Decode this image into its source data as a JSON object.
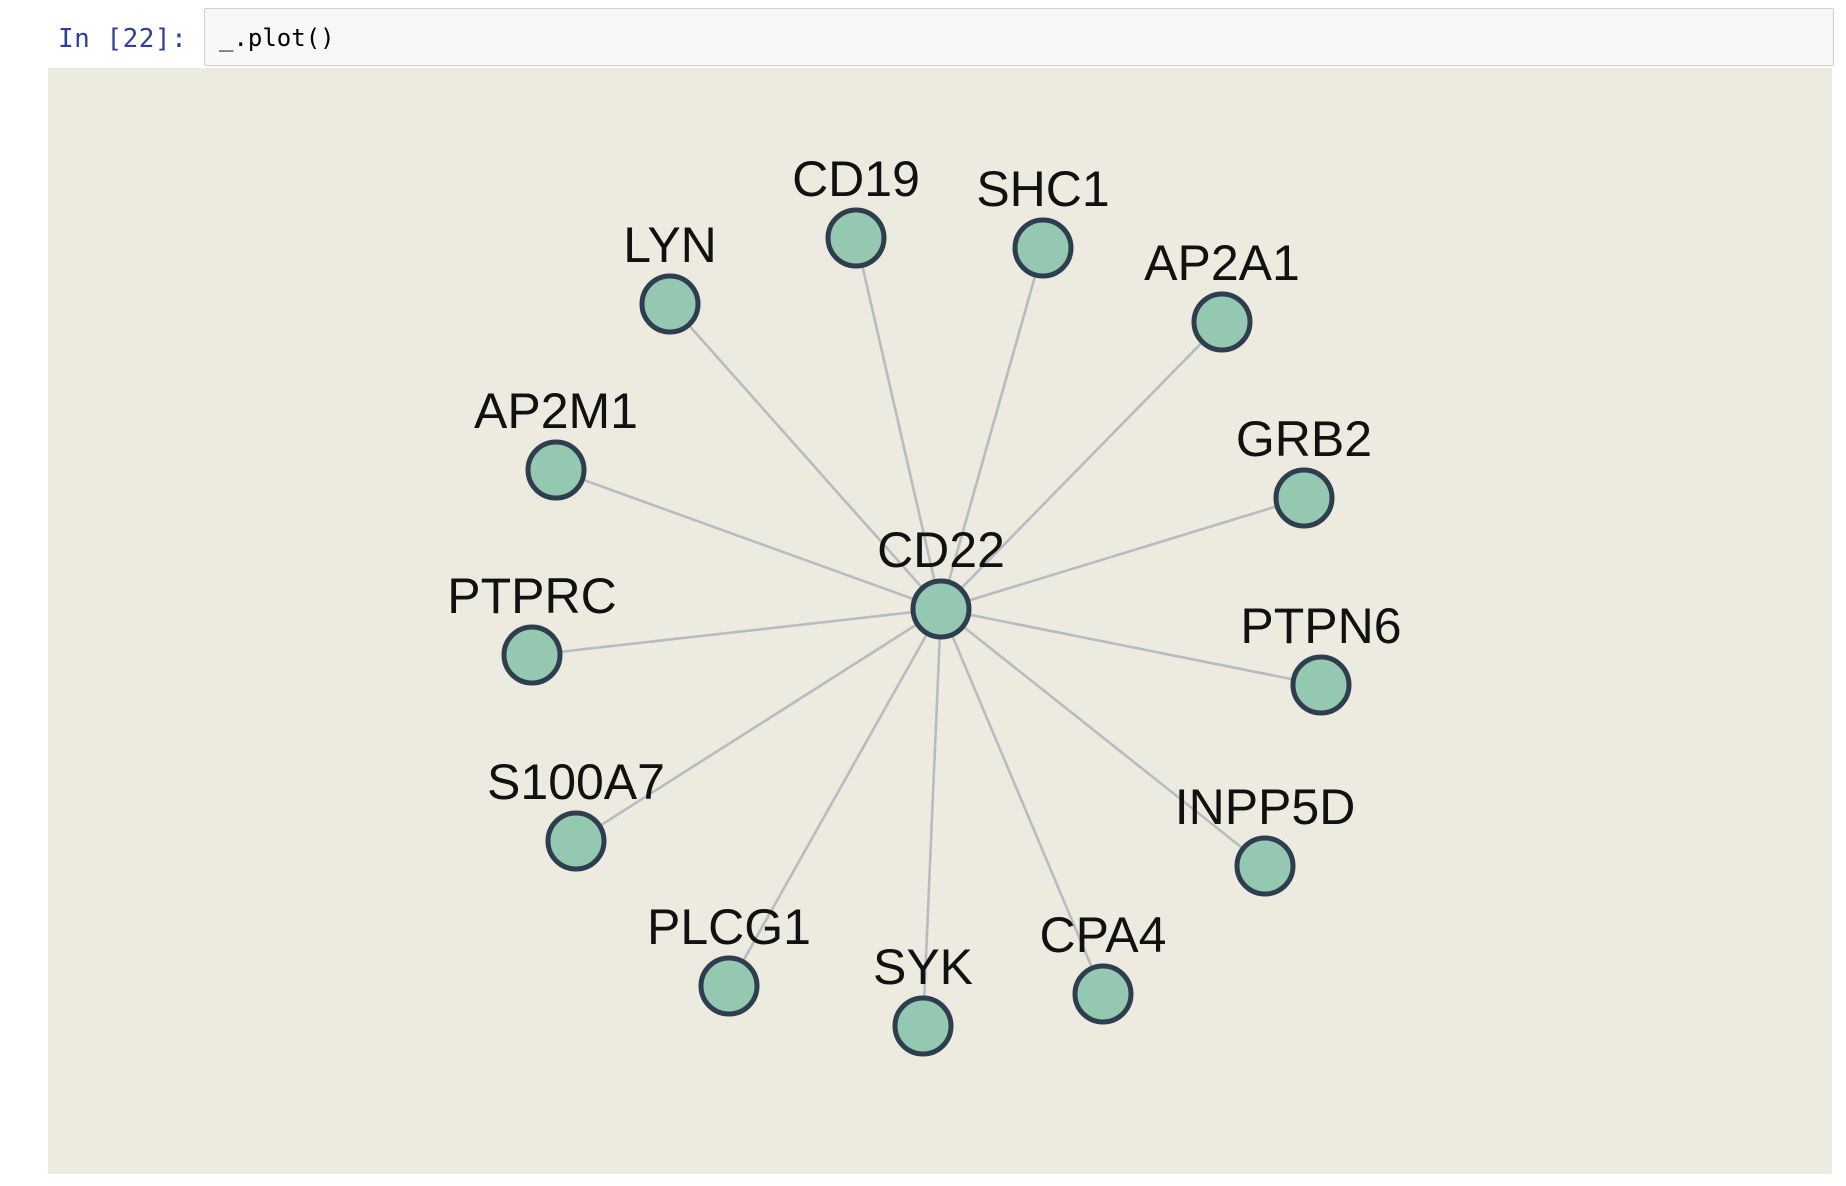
{
  "cell": {
    "prompt": "In [22]:",
    "code": "_.plot()"
  },
  "graph": {
    "background_color": "#edeae0",
    "node_fill_color": "#94c8b0",
    "node_stroke_color": "#2e3e4e",
    "edge_color": "#b7bcc0",
    "layout": "star",
    "center": "CD22",
    "nodes": [
      "CD22",
      "CD19",
      "SHC1",
      "LYN",
      "AP2A1",
      "AP2M1",
      "GRB2",
      "PTPRC",
      "PTPN6",
      "S100A7",
      "INPP5D",
      "PLCG1",
      "CPA4",
      "SYK"
    ],
    "edges": [
      [
        "CD22",
        "CD19"
      ],
      [
        "CD22",
        "SHC1"
      ],
      [
        "CD22",
        "LYN"
      ],
      [
        "CD22",
        "AP2A1"
      ],
      [
        "CD22",
        "AP2M1"
      ],
      [
        "CD22",
        "GRB2"
      ],
      [
        "CD22",
        "PTPRC"
      ],
      [
        "CD22",
        "PTPN6"
      ],
      [
        "CD22",
        "S100A7"
      ],
      [
        "CD22",
        "INPP5D"
      ],
      [
        "CD22",
        "PLCG1"
      ],
      [
        "CD22",
        "CPA4"
      ],
      [
        "CD22",
        "SYK"
      ]
    ]
  }
}
